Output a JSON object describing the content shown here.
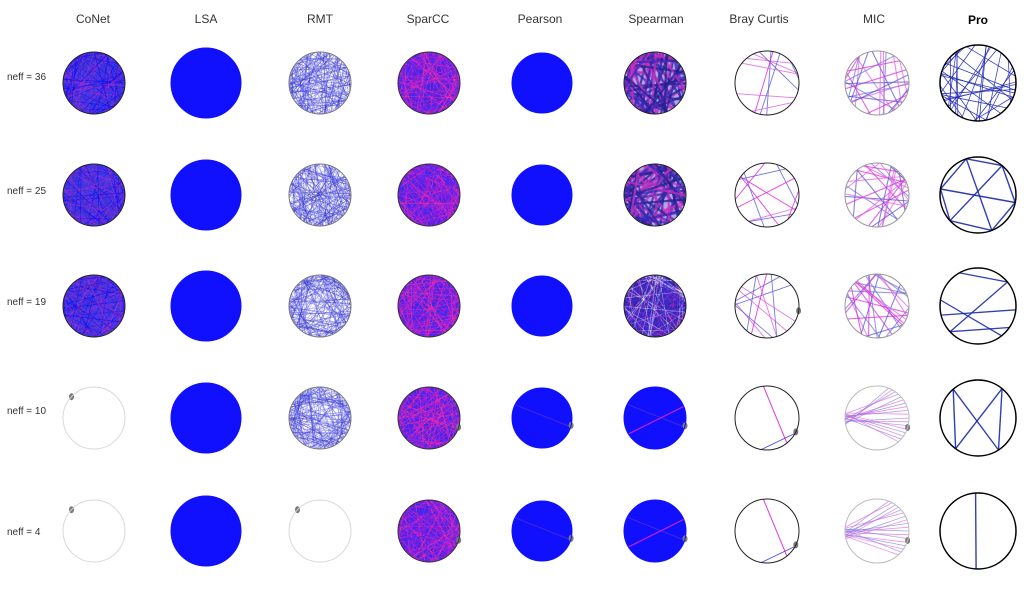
{
  "methods": [
    "CoNet",
    "LSA",
    "RMT",
    "SparCC",
    "Pearson",
    "Spearman",
    "Bray Curtis",
    "MIC",
    "Pro"
  ],
  "rows": [
    "neff = 36",
    "neff = 25",
    "neff = 19",
    "neff = 10",
    "neff = 4"
  ],
  "colors": {
    "blue": "#1414f5",
    "fill_blue": "#1010ff",
    "magenta": "#dd22dd",
    "pink": "#e060e0",
    "dark_edge": "#222222",
    "navy": "#1a2aa8",
    "faint": "#cfcfcf",
    "node": "#7a7a7a"
  },
  "grid": [
    [
      "dense",
      "solid",
      "dense-light",
      "dense-red",
      "solid",
      "dense-dark",
      "sparse",
      "sparse-mix",
      "pro-dense"
    ],
    [
      "dense",
      "solid",
      "dense-light",
      "dense-red",
      "solid",
      "dense-dark",
      "sparse",
      "sparse-mix",
      "pro-mid"
    ],
    [
      "dense",
      "solid",
      "dense-light",
      "dense-red",
      "solid",
      "dense-mix",
      "sparse",
      "sparse-mix",
      "pro-light"
    ],
    [
      "empty",
      "solid",
      "dense-light",
      "dense-red",
      "solid-line",
      "solid-line",
      "empty-line",
      "fan",
      "pro-few"
    ],
    [
      "empty",
      "solid",
      "empty",
      "dense-red",
      "solid-line",
      "solid-line",
      "empty-line",
      "fan",
      "pro-one"
    ]
  ]
}
